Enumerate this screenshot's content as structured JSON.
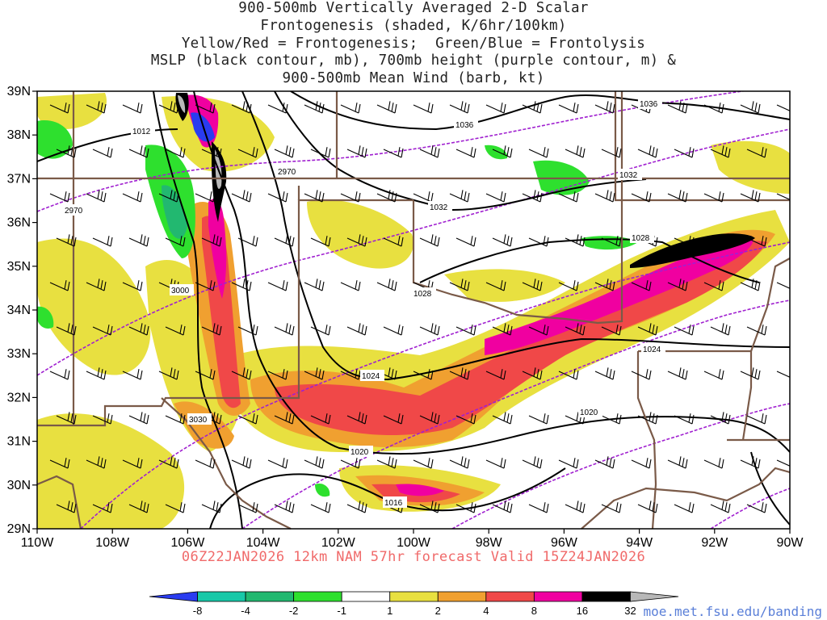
{
  "title": {
    "line1": "900-500mb Vertically Averaged 2-D Scalar",
    "line2": "Frontogenesis (shaded, K/6hr/100km)",
    "line3": "Yellow/Red = Frontogenesis;  Green/Blue = Frontolysis",
    "line4": "MSLP (black contour, mb), 700mb height (purple contour, m) &",
    "line5": "900-500mb Mean Wind (barb, kt)"
  },
  "axes": {
    "lat_labels": [
      "39N",
      "38N",
      "37N",
      "36N",
      "35N",
      "34N",
      "33N",
      "32N",
      "31N",
      "30N",
      "29N"
    ],
    "lon_labels": [
      "110W",
      "108W",
      "106W",
      "104W",
      "102W",
      "100W",
      "98W",
      "96W",
      "94W",
      "92W",
      "90W"
    ]
  },
  "contour_labels": {
    "pressure": [
      "1036",
      "1036",
      "1032",
      "1032",
      "1028",
      "1028",
      "1024",
      "1024",
      "1020",
      "1020",
      "1016",
      "1012"
    ],
    "height": [
      "2970",
      "2970",
      "3000",
      "3030"
    ]
  },
  "colorbar": {
    "ticks": [
      "-8",
      "-4",
      "-2",
      "-1",
      "1",
      "2",
      "4",
      "8",
      "16",
      "32"
    ],
    "colors": [
      "#2a3cf0",
      "#18c8a8",
      "#22b870",
      "#2ee02e",
      "#ffffff",
      "#e8e040",
      "#f0a030",
      "#f04848",
      "#f000a0",
      "#000000",
      "#b8b8b8"
    ]
  },
  "valid_time": "06Z22JAN2026 12km NAM 57hr forecast Valid 15Z24JAN2026",
  "credit": "moe.met.fsu.edu/banding",
  "colors": {
    "pressure_contour": "#000000",
    "height_contour": "#a020d0",
    "border": "#7a5a48"
  }
}
